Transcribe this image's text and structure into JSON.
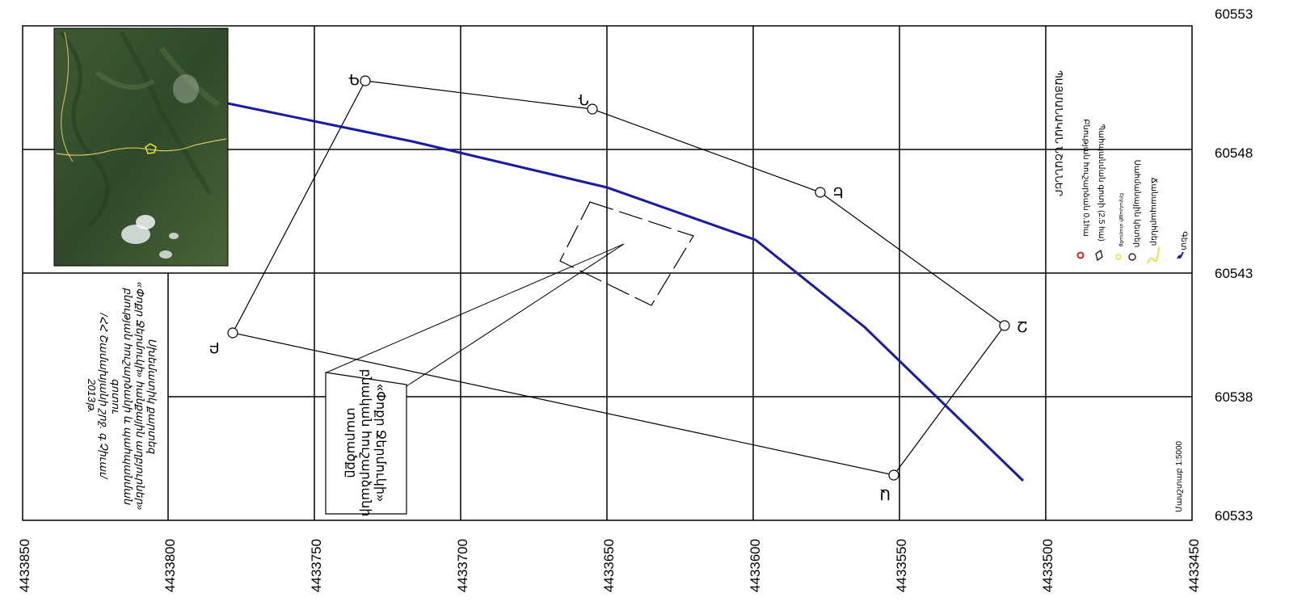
{
  "x_ticks": [
    "4433850",
    "4433800",
    "4433750",
    "4433700",
    "4433650",
    "4433600",
    "4433550",
    "4433500",
    "4433450"
  ],
  "y_ticks": [
    "60553",
    "60548",
    "60543",
    "60538",
    "60533"
  ],
  "vertices": {
    "a": "Ա",
    "b": "Բ",
    "g": "Գ",
    "d": "Դ",
    "e": "Ե",
    "z": "Զ"
  },
  "callout": {
    "line1": "«Փոքր Ջերմուկի»",
    "line2": "բնական հուշարձանի",
    "line3": "տարածքը"
  },
  "title_block": {
    "line1": "Սխեմատիկ քարտեզ",
    "line2": "«Փոքր Ջերմուկի» հանքային աղբյուրներ»",
    "line3": "բնության հուշարձանի և պահպանման",
    "line4": "գոտու",
    "line5": "/ՀՀ Շամախյանի շրջ. գ.Չիւաւ/",
    "line6": "2013թ."
  },
  "legend": {
    "title": "ՊԱՅՄԱՆԱԿԱՆ ՆՇԱՆՆԵՐ",
    "items": [
      "Բնության հուշարձան  0.1hա",
      "Պահպանման գոտի  (2.5 hա)",
      "Շրջակայքի տարածք",
      "Սահմանային կետեր",
      "Ճանապարհներ",
      "Գետ"
    ]
  },
  "scale": "Մասշտաբ 1:5000",
  "colors": {
    "river": "#1a1aaa",
    "lines": "#000000",
    "boundary_marker": "#cc2222",
    "highlight": "#e8e030"
  }
}
